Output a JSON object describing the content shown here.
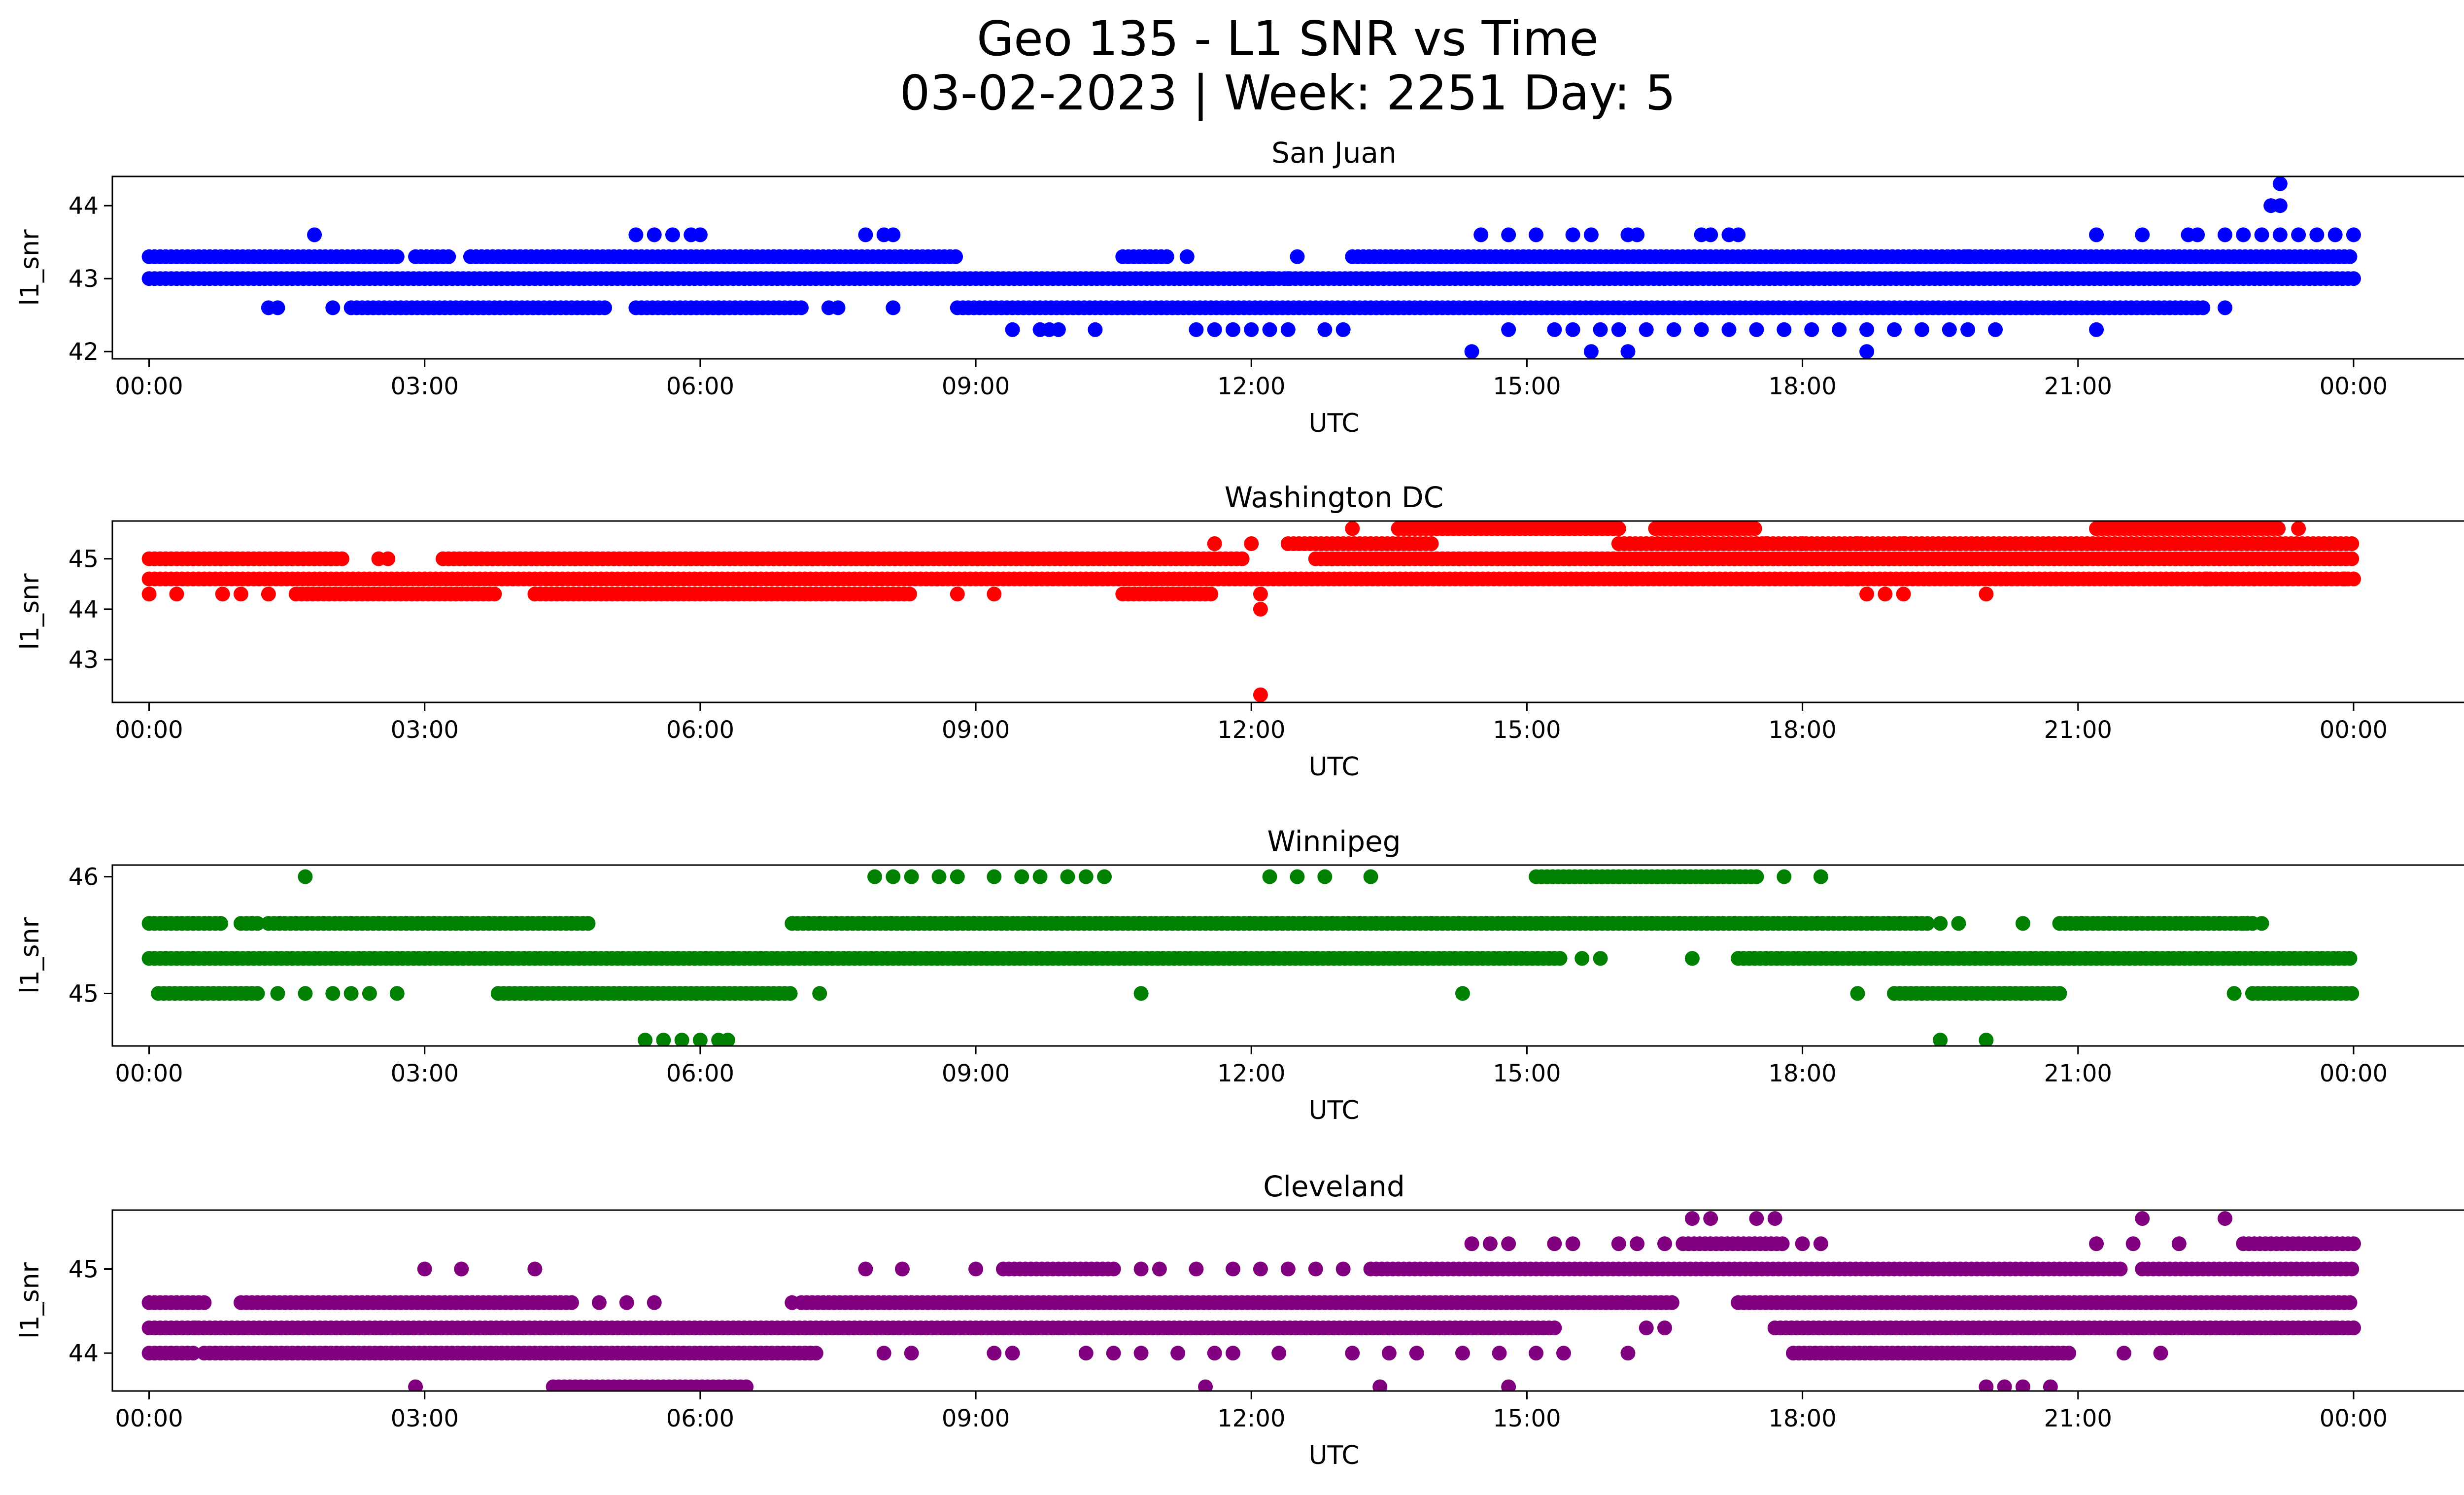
{
  "suptitle_line1": "Geo 135 - L1 SNR vs Time",
  "suptitle_line2": "03-02-2023 | Week: 2251 Day: 5",
  "chart_data": [
    {
      "type": "scatter",
      "title": "San Juan",
      "xlabel": "UTC",
      "ylabel": "l1_snr",
      "color": "#0000ff",
      "xlim": [
        -0.4,
        26.2
      ],
      "ylim": [
        41.9,
        44.4
      ],
      "xticks": [
        0,
        3,
        6,
        9,
        12,
        15,
        18,
        21,
        24
      ],
      "xticklabels": [
        "00:00",
        "03:00",
        "06:00",
        "09:00",
        "12:00",
        "15:00",
        "18:00",
        "21:00",
        "00:00"
      ],
      "yticks": [
        42,
        43,
        44
      ],
      "yticklabels": [
        "42",
        "43",
        "44"
      ],
      "bands": [
        {
          "y": 43.0,
          "ranges": [
            [
              0,
              24
            ]
          ]
        },
        {
          "y": 43.3,
          "ranges": [
            [
              0,
              2.7
            ],
            [
              2.9,
              3.3
            ],
            [
              3.5,
              8.8
            ],
            [
              10.6,
              11.1
            ],
            [
              13.1,
              24
            ]
          ]
        },
        {
          "y": 42.6,
          "ranges": [
            [
              2.2,
              5.0
            ],
            [
              5.3,
              7.1
            ],
            [
              8.8,
              22.4
            ]
          ]
        }
      ],
      "points": [
        [
          1.3,
          42.6
        ],
        [
          1.4,
          42.6
        ],
        [
          2.0,
          42.6
        ],
        [
          6.2,
          42.6
        ],
        [
          7.4,
          42.6
        ],
        [
          7.5,
          42.6
        ],
        [
          8.1,
          42.6
        ],
        [
          22.6,
          42.6
        ],
        [
          1.8,
          43.6
        ],
        [
          5.3,
          43.6
        ],
        [
          5.5,
          43.6
        ],
        [
          5.7,
          43.6
        ],
        [
          5.9,
          43.6
        ],
        [
          6.0,
          43.6
        ],
        [
          7.8,
          43.6
        ],
        [
          8.0,
          43.6
        ],
        [
          8.1,
          43.6
        ],
        [
          14.5,
          43.6
        ],
        [
          14.8,
          43.6
        ],
        [
          15.1,
          43.6
        ],
        [
          15.5,
          43.6
        ],
        [
          15.7,
          43.6
        ],
        [
          16.1,
          43.6
        ],
        [
          16.2,
          43.6
        ],
        [
          16.9,
          43.6
        ],
        [
          17.0,
          43.6
        ],
        [
          17.2,
          43.6
        ],
        [
          17.3,
          43.6
        ],
        [
          21.2,
          43.6
        ],
        [
          21.7,
          43.6
        ],
        [
          22.2,
          43.6
        ],
        [
          22.3,
          43.6
        ],
        [
          22.6,
          43.6
        ],
        [
          22.8,
          43.6
        ],
        [
          23.0,
          43.6
        ],
        [
          23.2,
          43.6
        ],
        [
          23.4,
          43.6
        ],
        [
          23.6,
          43.6
        ],
        [
          23.8,
          43.6
        ],
        [
          24.0,
          43.6
        ],
        [
          9.4,
          42.3
        ],
        [
          9.7,
          42.3
        ],
        [
          9.8,
          42.3
        ],
        [
          9.9,
          42.3
        ],
        [
          10.3,
          42.3
        ],
        [
          11.4,
          42.3
        ],
        [
          11.6,
          42.3
        ],
        [
          11.8,
          42.3
        ],
        [
          12.0,
          42.3
        ],
        [
          12.2,
          42.3
        ],
        [
          12.4,
          42.3
        ],
        [
          12.8,
          42.3
        ],
        [
          13.0,
          42.3
        ],
        [
          14.8,
          42.3
        ],
        [
          15.3,
          42.3
        ],
        [
          15.5,
          42.3
        ],
        [
          15.8,
          42.3
        ],
        [
          16.0,
          42.3
        ],
        [
          16.3,
          42.3
        ],
        [
          16.6,
          42.3
        ],
        [
          16.9,
          42.3
        ],
        [
          17.2,
          42.3
        ],
        [
          17.5,
          42.3
        ],
        [
          17.8,
          42.3
        ],
        [
          18.1,
          42.3
        ],
        [
          18.4,
          42.3
        ],
        [
          18.7,
          42.3
        ],
        [
          19.0,
          42.3
        ],
        [
          19.3,
          42.3
        ],
        [
          19.6,
          42.3
        ],
        [
          19.8,
          42.3
        ],
        [
          20.1,
          42.3
        ],
        [
          21.2,
          42.3
        ],
        [
          14.4,
          42.0
        ],
        [
          15.7,
          42.0
        ],
        [
          16.1,
          42.0
        ],
        [
          18.7,
          42.0
        ],
        [
          12.2,
          43.0
        ],
        [
          12.4,
          43.0
        ],
        [
          10.9,
          43.3
        ],
        [
          11.3,
          43.3
        ],
        [
          12.5,
          43.3
        ],
        [
          19.8,
          43.3
        ],
        [
          23.1,
          44.0
        ],
        [
          23.2,
          44.0
        ],
        [
          23.2,
          44.3
        ]
      ]
    },
    {
      "type": "scatter",
      "title": "Washington DC",
      "xlabel": "UTC",
      "ylabel": "l1_snr",
      "color": "#ff0000",
      "xlim": [
        -0.4,
        26.2
      ],
      "ylim": [
        42.15,
        45.75
      ],
      "xticks": [
        0,
        3,
        6,
        9,
        12,
        15,
        18,
        21,
        24
      ],
      "xticklabels": [
        "00:00",
        "03:00",
        "06:00",
        "09:00",
        "12:00",
        "15:00",
        "18:00",
        "21:00",
        "00:00"
      ],
      "yticks": [
        43,
        44,
        45
      ],
      "yticklabels": [
        "43",
        "44",
        "45"
      ],
      "bands": [
        {
          "y": 45.0,
          "ranges": [
            [
              0,
              2.1
            ],
            [
              3.2,
              11.9
            ],
            [
              12.7,
              24
            ]
          ]
        },
        {
          "y": 44.6,
          "ranges": [
            [
              0,
              24
            ]
          ]
        },
        {
          "y": 44.3,
          "ranges": [
            [
              1.6,
              3.8
            ],
            [
              4.2,
              8.3
            ],
            [
              10.6,
              11.6
            ]
          ]
        },
        {
          "y": 45.3,
          "ranges": [
            [
              12.4,
              14.0
            ],
            [
              16.0,
              24
            ]
          ]
        },
        {
          "y": 45.6,
          "ranges": [
            [
              13.6,
              16.0
            ],
            [
              16.4,
              17.5
            ],
            [
              21.2,
              23.2
            ]
          ]
        }
      ],
      "points": [
        [
          0.0,
          44.3
        ],
        [
          0.3,
          44.3
        ],
        [
          0.8,
          44.3
        ],
        [
          1.0,
          44.3
        ],
        [
          1.3,
          44.3
        ],
        [
          8.8,
          44.3
        ],
        [
          9.2,
          44.3
        ],
        [
          12.1,
          44.3
        ],
        [
          12.1,
          44.0
        ],
        [
          12.1,
          42.3
        ],
        [
          2.5,
          45.0
        ],
        [
          2.6,
          45.0
        ],
        [
          11.6,
          45.3
        ],
        [
          12.0,
          45.3
        ],
        [
          13.1,
          45.6
        ],
        [
          16.6,
          45.6
        ],
        [
          16.8,
          45.6
        ],
        [
          17.3,
          45.6
        ],
        [
          17.6,
          45.3
        ],
        [
          18.0,
          45.3
        ],
        [
          18.6,
          45.3
        ],
        [
          19.1,
          45.3
        ],
        [
          18.5,
          44.6
        ],
        [
          18.7,
          44.3
        ],
        [
          18.9,
          44.3
        ],
        [
          19.1,
          44.3
        ],
        [
          20.0,
          44.3
        ],
        [
          22.4,
          44.6
        ],
        [
          23.4,
          45.6
        ],
        [
          23.9,
          44.6
        ],
        [
          24.0,
          44.6
        ]
      ]
    },
    {
      "type": "scatter",
      "title": "Winnipeg",
      "xlabel": "UTC",
      "ylabel": "l1_snr",
      "color": "#008000",
      "xlim": [
        -0.4,
        26.2
      ],
      "ylim": [
        44.55,
        46.1
      ],
      "xticks": [
        0,
        3,
        6,
        9,
        12,
        15,
        18,
        21,
        24
      ],
      "xticklabels": [
        "00:00",
        "03:00",
        "06:00",
        "09:00",
        "12:00",
        "15:00",
        "18:00",
        "21:00",
        "00:00"
      ],
      "yticks": [
        45,
        46
      ],
      "yticklabels": [
        "45",
        "46"
      ],
      "bands": [
        {
          "y": 45.3,
          "ranges": [
            [
              0,
              15.4
            ],
            [
              17.3,
              24
            ]
          ]
        },
        {
          "y": 45.6,
          "ranges": [
            [
              0,
              0.8
            ],
            [
              1.0,
              1.2
            ],
            [
              1.3,
              4.8
            ],
            [
              7.0,
              19.4
            ],
            [
              20.8,
              22.9
            ]
          ]
        },
        {
          "y": 45.0,
          "ranges": [
            [
              0.1,
              1.2
            ],
            [
              3.8,
              7.0
            ],
            [
              19.0,
              20.8
            ],
            [
              22.9,
              24
            ]
          ]
        },
        {
          "y": 46.0,
          "ranges": [
            [
              15.1,
              17.5
            ]
          ]
        }
      ],
      "points": [
        [
          1.7,
          46.0
        ],
        [
          7.9,
          46.0
        ],
        [
          8.1,
          46.0
        ],
        [
          8.3,
          46.0
        ],
        [
          8.6,
          46.0
        ],
        [
          8.8,
          46.0
        ],
        [
          9.2,
          46.0
        ],
        [
          9.5,
          46.0
        ],
        [
          9.7,
          46.0
        ],
        [
          10.0,
          46.0
        ],
        [
          10.2,
          46.0
        ],
        [
          10.4,
          46.0
        ],
        [
          12.2,
          46.0
        ],
        [
          12.5,
          46.0
        ],
        [
          12.8,
          46.0
        ],
        [
          13.3,
          46.0
        ],
        [
          17.8,
          46.0
        ],
        [
          18.2,
          46.0
        ],
        [
          1.4,
          45.0
        ],
        [
          1.7,
          45.0
        ],
        [
          2.0,
          45.0
        ],
        [
          2.2,
          45.0
        ],
        [
          2.4,
          45.0
        ],
        [
          2.7,
          45.0
        ],
        [
          7.3,
          45.0
        ],
        [
          10.8,
          45.0
        ],
        [
          14.3,
          45.0
        ],
        [
          18.6,
          45.0
        ],
        [
          22.7,
          45.0
        ],
        [
          15.6,
          45.3
        ],
        [
          15.8,
          45.3
        ],
        [
          16.8,
          45.3
        ],
        [
          19.5,
          45.6
        ],
        [
          19.7,
          45.6
        ],
        [
          20.4,
          45.6
        ],
        [
          22.8,
          45.6
        ],
        [
          23.0,
          45.6
        ],
        [
          5.4,
          44.6
        ],
        [
          5.6,
          44.6
        ],
        [
          5.8,
          44.6
        ],
        [
          6.0,
          44.6
        ],
        [
          6.2,
          44.6
        ],
        [
          6.3,
          44.6
        ],
        [
          19.5,
          44.6
        ],
        [
          20.0,
          44.6
        ]
      ]
    },
    {
      "type": "scatter",
      "title": "Cleveland",
      "xlabel": "UTC",
      "ylabel": "l1_snr",
      "color": "#800080",
      "xlim": [
        -0.4,
        26.2
      ],
      "ylim": [
        43.55,
        45.7
      ],
      "xticks": [
        0,
        3,
        6,
        9,
        12,
        15,
        18,
        21,
        24
      ],
      "xticklabels": [
        "00:00",
        "03:00",
        "06:00",
        "09:00",
        "12:00",
        "15:00",
        "18:00",
        "21:00",
        "00:00"
      ],
      "yticks": [
        44,
        45
      ],
      "yticklabels": [
        "44",
        "45"
      ],
      "bands": [
        {
          "y": 44.3,
          "ranges": [
            [
              0,
              15.3
            ],
            [
              17.7,
              24
            ]
          ]
        },
        {
          "y": 44.0,
          "ranges": [
            [
              0,
              0.5
            ],
            [
              0.6,
              7.3
            ],
            [
              17.9,
              20.9
            ]
          ]
        },
        {
          "y": 44.6,
          "ranges": [
            [
              0,
              0.6
            ],
            [
              1.0,
              4.6
            ],
            [
              7.1,
              16.6
            ],
            [
              17.3,
              24
            ]
          ]
        },
        {
          "y": 45.0,
          "ranges": [
            [
              9.3,
              10.5
            ],
            [
              13.3,
              21.5
            ],
            [
              21.7,
              24
            ]
          ]
        },
        {
          "y": 45.3,
          "ranges": [
            [
              16.7,
              17.8
            ],
            [
              22.8,
              24
            ]
          ]
        },
        {
          "y": 43.6,
          "ranges": [
            [
              4.4,
              6.5
            ]
          ]
        }
      ],
      "points": [
        [
          3.0,
          45.0
        ],
        [
          3.4,
          45.0
        ],
        [
          4.2,
          45.0
        ],
        [
          7.8,
          45.0
        ],
        [
          8.2,
          45.0
        ],
        [
          9.0,
          45.0
        ],
        [
          10.8,
          45.0
        ],
        [
          11.0,
          45.0
        ],
        [
          11.4,
          45.0
        ],
        [
          11.8,
          45.0
        ],
        [
          12.1,
          45.0
        ],
        [
          12.4,
          45.0
        ],
        [
          12.7,
          45.0
        ],
        [
          13.0,
          45.0
        ],
        [
          14.4,
          45.3
        ],
        [
          14.6,
          45.3
        ],
        [
          14.8,
          45.3
        ],
        [
          15.3,
          45.3
        ],
        [
          15.5,
          45.3
        ],
        [
          16.0,
          45.3
        ],
        [
          16.2,
          45.3
        ],
        [
          16.5,
          45.3
        ],
        [
          16.8,
          45.6
        ],
        [
          17.0,
          45.6
        ],
        [
          17.5,
          45.6
        ],
        [
          17.7,
          45.6
        ],
        [
          18.0,
          45.3
        ],
        [
          18.2,
          45.3
        ],
        [
          21.2,
          45.3
        ],
        [
          21.6,
          45.3
        ],
        [
          21.7,
          45.6
        ],
        [
          22.1,
          45.3
        ],
        [
          22.6,
          45.6
        ],
        [
          2.9,
          43.6
        ],
        [
          11.5,
          43.6
        ],
        [
          13.4,
          43.6
        ],
        [
          14.8,
          43.6
        ],
        [
          20.0,
          43.6
        ],
        [
          20.2,
          43.6
        ],
        [
          20.4,
          43.6
        ],
        [
          20.7,
          43.6
        ],
        [
          8.0,
          44.0
        ],
        [
          8.3,
          44.0
        ],
        [
          9.2,
          44.0
        ],
        [
          9.4,
          44.0
        ],
        [
          10.2,
          44.0
        ],
        [
          10.5,
          44.0
        ],
        [
          10.8,
          44.0
        ],
        [
          11.2,
          44.0
        ],
        [
          11.6,
          44.0
        ],
        [
          11.8,
          44.0
        ],
        [
          12.3,
          44.0
        ],
        [
          13.1,
          44.0
        ],
        [
          13.5,
          44.0
        ],
        [
          13.8,
          44.0
        ],
        [
          14.3,
          44.0
        ],
        [
          14.7,
          44.0
        ],
        [
          15.1,
          44.0
        ],
        [
          15.4,
          44.0
        ],
        [
          16.1,
          44.0
        ],
        [
          21.5,
          44.0
        ],
        [
          21.9,
          44.0
        ],
        [
          16.3,
          44.3
        ],
        [
          16.5,
          44.3
        ],
        [
          21.0,
          44.3
        ],
        [
          21.3,
          44.3
        ],
        [
          23.8,
          44.3
        ],
        [
          24.0,
          44.3
        ],
        [
          0.5,
          44.3
        ],
        [
          4.9,
          44.6
        ],
        [
          5.2,
          44.6
        ],
        [
          5.5,
          44.6
        ],
        [
          7.0,
          44.6
        ]
      ]
    }
  ]
}
